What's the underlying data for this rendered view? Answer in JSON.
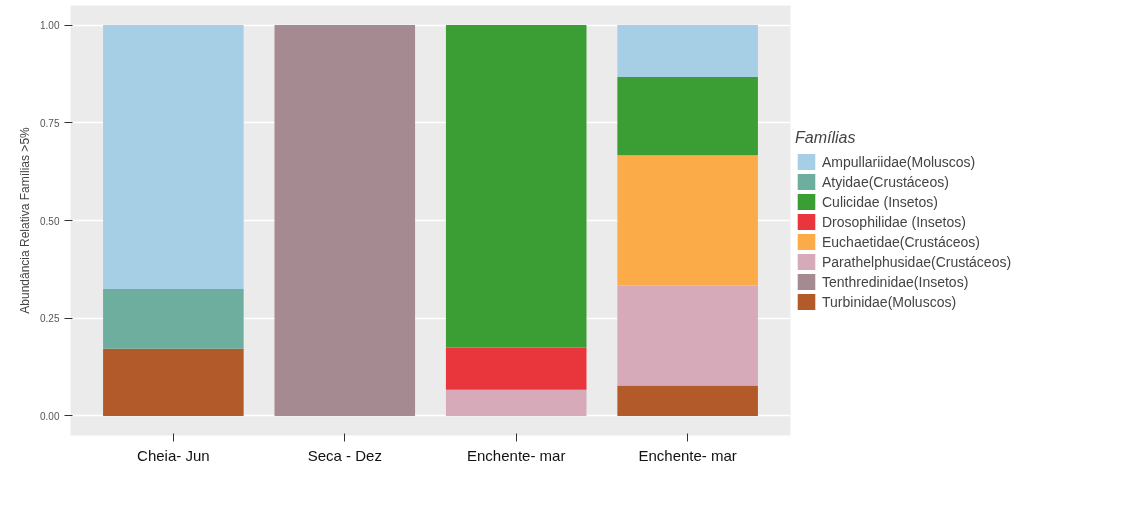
{
  "chart_data": {
    "type": "bar",
    "stacked": true,
    "ylabel": "Abundância Relativa Famílias >5%",
    "legend_title": "Famílias",
    "legend": "right",
    "grid": "y",
    "categories": [
      "Cheia- Jun",
      "Seca - Dez",
      "Enchente- mar",
      "Enchente- mar"
    ],
    "ylim": [
      -0.05,
      1.05
    ],
    "yticks": [
      {
        "value": 0,
        "label": "0.00"
      },
      {
        "value": 0.25,
        "label": "0.25"
      },
      {
        "value": 0.5,
        "label": "0.50"
      },
      {
        "value": 0.75,
        "label": "0.75"
      },
      {
        "value": 1,
        "label": "1.00"
      }
    ],
    "series": [
      {
        "name": "Turbinidae(Moluscos)",
        "color": "#b35a2a",
        "values": [
          0.172,
          null,
          null,
          0.078
        ]
      },
      {
        "name": "Tenthredinidae(Insetos)",
        "color": "#a58a92",
        "values": [
          null,
          1,
          null,
          null
        ]
      },
      {
        "name": "Parathelphusidae(Crustáceos)",
        "color": "#d7aab9",
        "values": [
          null,
          null,
          0.067,
          0.256
        ]
      },
      {
        "name": "Euchaetidae(Crustáceos)",
        "color": "#fbab48",
        "values": [
          null,
          null,
          null,
          0.333
        ]
      },
      {
        "name": "Drosophilidae (Insetos)",
        "color": "#e8363c",
        "values": [
          null,
          null,
          0.108,
          null
        ]
      },
      {
        "name": "Culicidae (Insetos)",
        "color": "#3a9e35",
        "values": [
          null,
          null,
          0.825,
          0.2
        ]
      },
      {
        "name": "Atyidae(Crustáceos)",
        "color": "#6eae9e",
        "values": [
          0.153,
          null,
          null,
          null
        ]
      },
      {
        "name": "Ampullariidae(Moluscos)",
        "color": "#a6cfe5",
        "values": [
          0.675,
          null,
          null,
          0.133
        ]
      }
    ]
  }
}
